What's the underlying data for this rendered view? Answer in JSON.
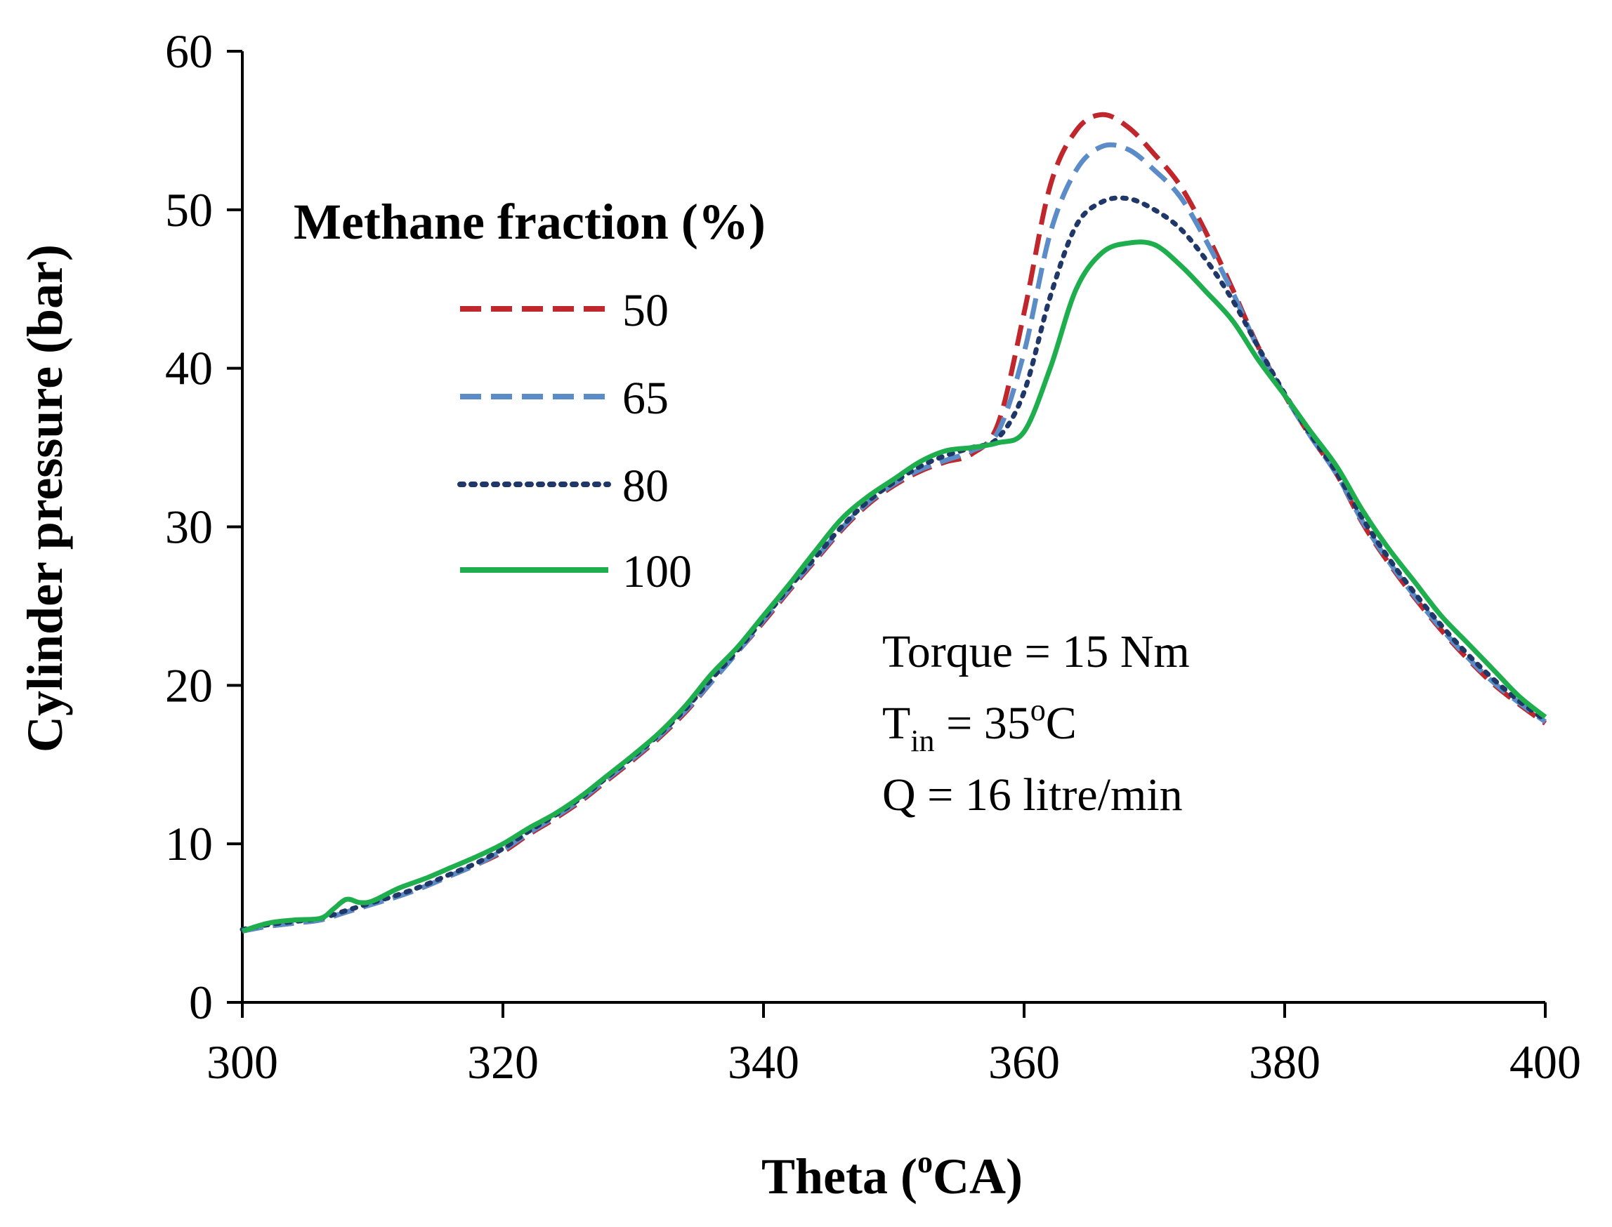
{
  "chart_data": {
    "type": "line",
    "title": "",
    "xlabel": {
      "prefix": "Theta (",
      "sup": "o",
      "suffix": "CA)"
    },
    "ylabel": "Cylinder pressure (bar)",
    "xlim": [
      300,
      400
    ],
    "ylim": [
      0,
      60
    ],
    "xticks": [
      300,
      320,
      340,
      360,
      380,
      400
    ],
    "yticks": [
      0,
      10,
      20,
      30,
      40,
      50,
      60
    ],
    "grid": false,
    "legend": {
      "title": "Methane fraction (%)",
      "placement": "upper-left"
    },
    "annotations": {
      "torque": "Torque = 15 Nm",
      "tin": {
        "main": "T",
        "sub": "in",
        "mid": " = 35",
        "sup": "o",
        "end": "C"
      },
      "flow": "Q = 16 litre/min"
    },
    "series": [
      {
        "name": "50",
        "color": "#c0272d",
        "dash": "dashed",
        "points": [
          [
            300,
            4.5
          ],
          [
            302,
            4.8
          ],
          [
            304,
            5.0
          ],
          [
            306,
            5.2
          ],
          [
            308,
            5.7
          ],
          [
            310,
            6.2
          ],
          [
            312,
            6.7
          ],
          [
            314,
            7.3
          ],
          [
            316,
            8.0
          ],
          [
            318,
            8.7
          ],
          [
            320,
            9.5
          ],
          [
            322,
            10.6
          ],
          [
            324,
            11.6
          ],
          [
            326,
            12.7
          ],
          [
            328,
            14.0
          ],
          [
            330,
            15.3
          ],
          [
            332,
            16.7
          ],
          [
            334,
            18.3
          ],
          [
            336,
            20.2
          ],
          [
            338,
            22.1
          ],
          [
            340,
            24.0
          ],
          [
            342,
            26.0
          ],
          [
            344,
            27.9
          ],
          [
            346,
            29.8
          ],
          [
            348,
            31.4
          ],
          [
            350,
            32.6
          ],
          [
            352,
            33.5
          ],
          [
            354,
            34.1
          ],
          [
            356,
            34.6
          ],
          [
            358,
            36.5
          ],
          [
            360,
            43.5
          ],
          [
            362,
            51.5
          ],
          [
            364,
            55.0
          ],
          [
            366,
            56.0
          ],
          [
            368,
            55.2
          ],
          [
            370,
            53.5
          ],
          [
            372,
            51.5
          ],
          [
            374,
            48.5
          ],
          [
            376,
            45.0
          ],
          [
            378,
            41.3
          ],
          [
            380,
            38.3
          ],
          [
            382,
            35.7
          ],
          [
            384,
            33.3
          ],
          [
            386,
            30.2
          ],
          [
            388,
            27.7
          ],
          [
            390,
            25.5
          ],
          [
            392,
            23.5
          ],
          [
            394,
            21.7
          ],
          [
            396,
            20.1
          ],
          [
            398,
            18.8
          ],
          [
            400,
            17.6
          ]
        ]
      },
      {
        "name": "65",
        "color": "#5b8cc8",
        "dash": "dashed",
        "points": [
          [
            300,
            4.5
          ],
          [
            302,
            4.8
          ],
          [
            304,
            5.0
          ],
          [
            306,
            5.2
          ],
          [
            308,
            5.7
          ],
          [
            310,
            6.2
          ],
          [
            312,
            6.7
          ],
          [
            314,
            7.3
          ],
          [
            316,
            8.0
          ],
          [
            318,
            8.7
          ],
          [
            320,
            9.6
          ],
          [
            322,
            10.7
          ],
          [
            324,
            11.7
          ],
          [
            326,
            12.8
          ],
          [
            328,
            14.1
          ],
          [
            330,
            15.4
          ],
          [
            332,
            16.8
          ],
          [
            334,
            18.4
          ],
          [
            336,
            20.2
          ],
          [
            338,
            22.1
          ],
          [
            340,
            24.1
          ],
          [
            342,
            26.1
          ],
          [
            344,
            28.0
          ],
          [
            346,
            29.9
          ],
          [
            348,
            31.5
          ],
          [
            350,
            32.7
          ],
          [
            352,
            33.6
          ],
          [
            354,
            34.2
          ],
          [
            356,
            34.8
          ],
          [
            358,
            36.0
          ],
          [
            360,
            41.0
          ],
          [
            362,
            48.5
          ],
          [
            364,
            52.5
          ],
          [
            366,
            54.0
          ],
          [
            368,
            53.8
          ],
          [
            370,
            52.5
          ],
          [
            372,
            50.8
          ],
          [
            374,
            48.0
          ],
          [
            376,
            44.8
          ],
          [
            378,
            41.2
          ],
          [
            380,
            38.3
          ],
          [
            382,
            35.7
          ],
          [
            384,
            33.3
          ],
          [
            386,
            30.3
          ],
          [
            388,
            27.8
          ],
          [
            390,
            25.6
          ],
          [
            392,
            23.6
          ],
          [
            394,
            21.8
          ],
          [
            396,
            20.2
          ],
          [
            398,
            18.9
          ],
          [
            400,
            17.7
          ]
        ]
      },
      {
        "name": "80",
        "color": "#1f3868",
        "dash": "dotted",
        "points": [
          [
            300,
            4.6
          ],
          [
            302,
            4.9
          ],
          [
            304,
            5.1
          ],
          [
            306,
            5.3
          ],
          [
            308,
            5.8
          ],
          [
            310,
            6.3
          ],
          [
            312,
            6.8
          ],
          [
            314,
            7.4
          ],
          [
            316,
            8.1
          ],
          [
            318,
            8.8
          ],
          [
            320,
            9.7
          ],
          [
            322,
            10.8
          ],
          [
            324,
            11.8
          ],
          [
            326,
            12.9
          ],
          [
            328,
            14.2
          ],
          [
            330,
            15.5
          ],
          [
            332,
            16.9
          ],
          [
            334,
            18.5
          ],
          [
            336,
            20.4
          ],
          [
            338,
            22.2
          ],
          [
            340,
            24.2
          ],
          [
            342,
            26.2
          ],
          [
            344,
            28.1
          ],
          [
            346,
            30.0
          ],
          [
            348,
            31.6
          ],
          [
            350,
            32.8
          ],
          [
            352,
            33.8
          ],
          [
            354,
            34.5
          ],
          [
            356,
            35.0
          ],
          [
            358,
            35.6
          ],
          [
            360,
            38.5
          ],
          [
            362,
            44.5
          ],
          [
            364,
            49.0
          ],
          [
            366,
            50.5
          ],
          [
            368,
            50.7
          ],
          [
            370,
            50.0
          ],
          [
            372,
            48.8
          ],
          [
            374,
            46.8
          ],
          [
            376,
            44.3
          ],
          [
            378,
            41.3
          ],
          [
            380,
            38.4
          ],
          [
            382,
            35.8
          ],
          [
            384,
            33.4
          ],
          [
            386,
            30.5
          ],
          [
            388,
            28.0
          ],
          [
            390,
            25.8
          ],
          [
            392,
            23.8
          ],
          [
            394,
            22.0
          ],
          [
            396,
            20.4
          ],
          [
            398,
            19.0
          ],
          [
            400,
            17.8
          ]
        ]
      },
      {
        "name": "100",
        "color": "#1fae4e",
        "dash": "solid",
        "points": [
          [
            300,
            4.5
          ],
          [
            302,
            5.0
          ],
          [
            304,
            5.2
          ],
          [
            306,
            5.3
          ],
          [
            307,
            5.9
          ],
          [
            308,
            6.5
          ],
          [
            309,
            6.3
          ],
          [
            310,
            6.4
          ],
          [
            312,
            7.2
          ],
          [
            314,
            7.8
          ],
          [
            316,
            8.5
          ],
          [
            318,
            9.2
          ],
          [
            320,
            10.0
          ],
          [
            322,
            11.0
          ],
          [
            324,
            11.9
          ],
          [
            326,
            13.0
          ],
          [
            328,
            14.3
          ],
          [
            330,
            15.6
          ],
          [
            332,
            17.0
          ],
          [
            334,
            18.7
          ],
          [
            336,
            20.7
          ],
          [
            338,
            22.4
          ],
          [
            340,
            24.4
          ],
          [
            342,
            26.4
          ],
          [
            344,
            28.5
          ],
          [
            346,
            30.5
          ],
          [
            348,
            31.9
          ],
          [
            350,
            33.0
          ],
          [
            352,
            34.1
          ],
          [
            354,
            34.8
          ],
          [
            356,
            35.0
          ],
          [
            358,
            35.3
          ],
          [
            360,
            36.0
          ],
          [
            362,
            40.0
          ],
          [
            364,
            45.0
          ],
          [
            366,
            47.3
          ],
          [
            368,
            47.9
          ],
          [
            370,
            47.8
          ],
          [
            372,
            46.5
          ],
          [
            374,
            44.8
          ],
          [
            376,
            43.0
          ],
          [
            378,
            40.5
          ],
          [
            380,
            38.3
          ],
          [
            382,
            36.0
          ],
          [
            384,
            33.8
          ],
          [
            386,
            31.0
          ],
          [
            388,
            28.6
          ],
          [
            390,
            26.5
          ],
          [
            392,
            24.4
          ],
          [
            394,
            22.7
          ],
          [
            396,
            21.0
          ],
          [
            398,
            19.3
          ],
          [
            400,
            18.0
          ]
        ]
      }
    ]
  }
}
